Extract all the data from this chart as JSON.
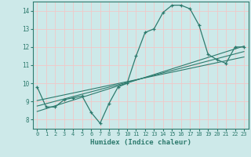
{
  "title": "",
  "xlabel": "Humidex (Indice chaleur)",
  "ylabel": "",
  "background_color": "#cde9e9",
  "grid_color": "#f0c8c8",
  "line_color": "#2e7b6e",
  "xlim": [
    -0.5,
    23.5
  ],
  "ylim": [
    7.5,
    14.5
  ],
  "xticks": [
    0,
    1,
    2,
    3,
    4,
    5,
    6,
    7,
    8,
    9,
    10,
    11,
    12,
    13,
    14,
    15,
    16,
    17,
    18,
    19,
    20,
    21,
    22,
    23
  ],
  "yticks": [
    8,
    9,
    10,
    11,
    12,
    13,
    14
  ],
  "curve1_x": [
    0,
    1,
    2,
    3,
    4,
    5,
    6,
    7,
    8,
    9,
    10,
    11,
    12,
    13,
    14,
    15,
    16,
    17,
    18,
    19,
    20,
    21,
    22,
    23
  ],
  "curve1_y": [
    9.8,
    8.7,
    8.7,
    9.1,
    9.2,
    9.3,
    8.4,
    7.8,
    8.9,
    9.8,
    10.0,
    11.5,
    12.8,
    13.0,
    13.9,
    14.3,
    14.3,
    14.1,
    13.2,
    11.6,
    11.3,
    11.1,
    12.0,
    12.0
  ],
  "trend1_start": 8.45,
  "trend1_end": 12.05,
  "trend2_start": 8.75,
  "trend2_end": 11.75,
  "trend3_start": 9.05,
  "trend3_end": 11.45
}
